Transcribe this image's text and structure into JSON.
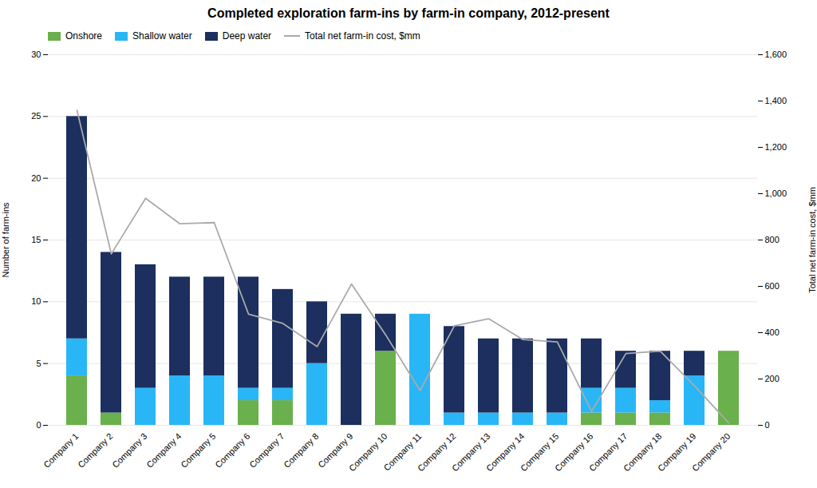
{
  "chart_data": {
    "type": "bar",
    "title": "Completed exploration farm-ins by farm-in company, 2012-present",
    "categories": [
      "Company 1",
      "Company 2",
      "Company 3",
      "Company 4",
      "Company 5",
      "Company 6",
      "Company 7",
      "Company 8",
      "Company 9",
      "Company 10",
      "Company 11",
      "Company 12",
      "Company 13",
      "Company 14",
      "Company 15",
      "Company 16",
      "Company 17",
      "Company 18",
      "Company 19",
      "Company 20"
    ],
    "stacked": true,
    "series": [
      {
        "name": "Onshore",
        "color": "#6ab04c",
        "values": [
          4,
          1,
          0,
          0,
          0,
          2,
          2,
          0,
          0,
          6,
          0,
          0,
          0,
          0,
          0,
          1,
          1,
          1,
          0,
          6
        ]
      },
      {
        "name": "Shallow water",
        "color": "#29b6f6",
        "values": [
          3,
          0,
          3,
          4,
          4,
          1,
          1,
          5,
          0,
          0,
          9,
          1,
          1,
          1,
          1,
          2,
          2,
          1,
          4,
          0
        ]
      },
      {
        "name": "Deep water",
        "color": "#1c2f5e",
        "values": [
          18,
          13,
          10,
          8,
          8,
          9,
          8,
          5,
          9,
          3,
          0,
          7,
          6,
          6,
          6,
          4,
          3,
          4,
          2,
          0
        ]
      },
      {
        "name": "Total net farm-in cost, $mm",
        "type": "line",
        "axis": "y2",
        "color": "#aaaaaa",
        "values": [
          1360,
          740,
          980,
          870,
          875,
          480,
          440,
          340,
          610,
          390,
          150,
          430,
          460,
          370,
          360,
          60,
          310,
          320,
          170,
          10
        ]
      }
    ],
    "ylabel": "Number of farm-ins",
    "y2label": "Total net farm-in cost, $mm",
    "ylim": [
      0,
      30
    ],
    "yticks": [
      0,
      5,
      10,
      15,
      20,
      25,
      30
    ],
    "y2lim": [
      0,
      1600
    ],
    "y2ticks": [
      0,
      200,
      400,
      600,
      800,
      {
        "value": 1000,
        "label": "1,000"
      },
      {
        "value": 1200,
        "label": "1,200"
      },
      {
        "value": 1400,
        "label": "1,400"
      },
      {
        "value": 1600,
        "label": "1,600"
      }
    ],
    "grid": true,
    "legend": "upper left"
  }
}
